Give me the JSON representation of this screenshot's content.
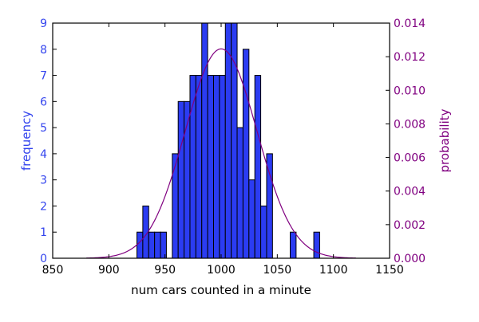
{
  "chart_data": {
    "type": "bar",
    "title": "",
    "xlabel": "num cars counted in a minute",
    "ylabel": "frequency",
    "y2label": "probability",
    "xlim": [
      850,
      1150
    ],
    "ylim": [
      0,
      9
    ],
    "y2lim": [
      0,
      0.014
    ],
    "x_ticks": [
      850,
      900,
      950,
      1000,
      1050,
      1100,
      1150
    ],
    "y_ticks": [
      0,
      1,
      2,
      3,
      4,
      5,
      6,
      7,
      8,
      9
    ],
    "y2_ticks": [
      "0.000",
      "0.002",
      "0.004",
      "0.006",
      "0.008",
      "0.010",
      "0.012",
      "0.014"
    ],
    "grid": false,
    "bin_width": 5.25,
    "bins": [
      {
        "x0": 925.0,
        "x1": 930.25,
        "count": 1
      },
      {
        "x0": 930.25,
        "x1": 935.5,
        "count": 2
      },
      {
        "x0": 935.5,
        "x1": 940.75,
        "count": 1
      },
      {
        "x0": 940.75,
        "x1": 946.0,
        "count": 1
      },
      {
        "x0": 946.0,
        "x1": 951.25,
        "count": 1
      },
      {
        "x0": 956.5,
        "x1": 961.75,
        "count": 4
      },
      {
        "x0": 961.75,
        "x1": 967.0,
        "count": 6
      },
      {
        "x0": 967.0,
        "x1": 972.25,
        "count": 6
      },
      {
        "x0": 972.25,
        "x1": 977.5,
        "count": 7
      },
      {
        "x0": 977.5,
        "x1": 982.75,
        "count": 7
      },
      {
        "x0": 982.75,
        "x1": 988.0,
        "count": 9
      },
      {
        "x0": 988.0,
        "x1": 993.25,
        "count": 7
      },
      {
        "x0": 993.25,
        "x1": 998.5,
        "count": 7
      },
      {
        "x0": 998.5,
        "x1": 1003.75,
        "count": 7
      },
      {
        "x0": 1003.75,
        "x1": 1009.0,
        "count": 9
      },
      {
        "x0": 1009.0,
        "x1": 1014.25,
        "count": 9
      },
      {
        "x0": 1014.25,
        "x1": 1019.5,
        "count": 5
      },
      {
        "x0": 1019.5,
        "x1": 1024.75,
        "count": 8
      },
      {
        "x0": 1024.75,
        "x1": 1030.0,
        "count": 3
      },
      {
        "x0": 1030.0,
        "x1": 1035.25,
        "count": 7
      },
      {
        "x0": 1035.25,
        "x1": 1040.5,
        "count": 2
      },
      {
        "x0": 1040.5,
        "x1": 1045.75,
        "count": 4
      },
      {
        "x0": 1061.5,
        "x1": 1066.75,
        "count": 1
      },
      {
        "x0": 1082.5,
        "x1": 1087.75,
        "count": 1
      }
    ],
    "curve": {
      "type": "normal-pdf",
      "mean": 1000,
      "std": 32,
      "x_range": [
        880,
        1120
      ]
    },
    "colors": {
      "bars": "#2b3cf2",
      "bar_edge": "#000000",
      "left_axis": "#3344ee",
      "right_axis": "#800080",
      "curve": "#800080"
    }
  }
}
